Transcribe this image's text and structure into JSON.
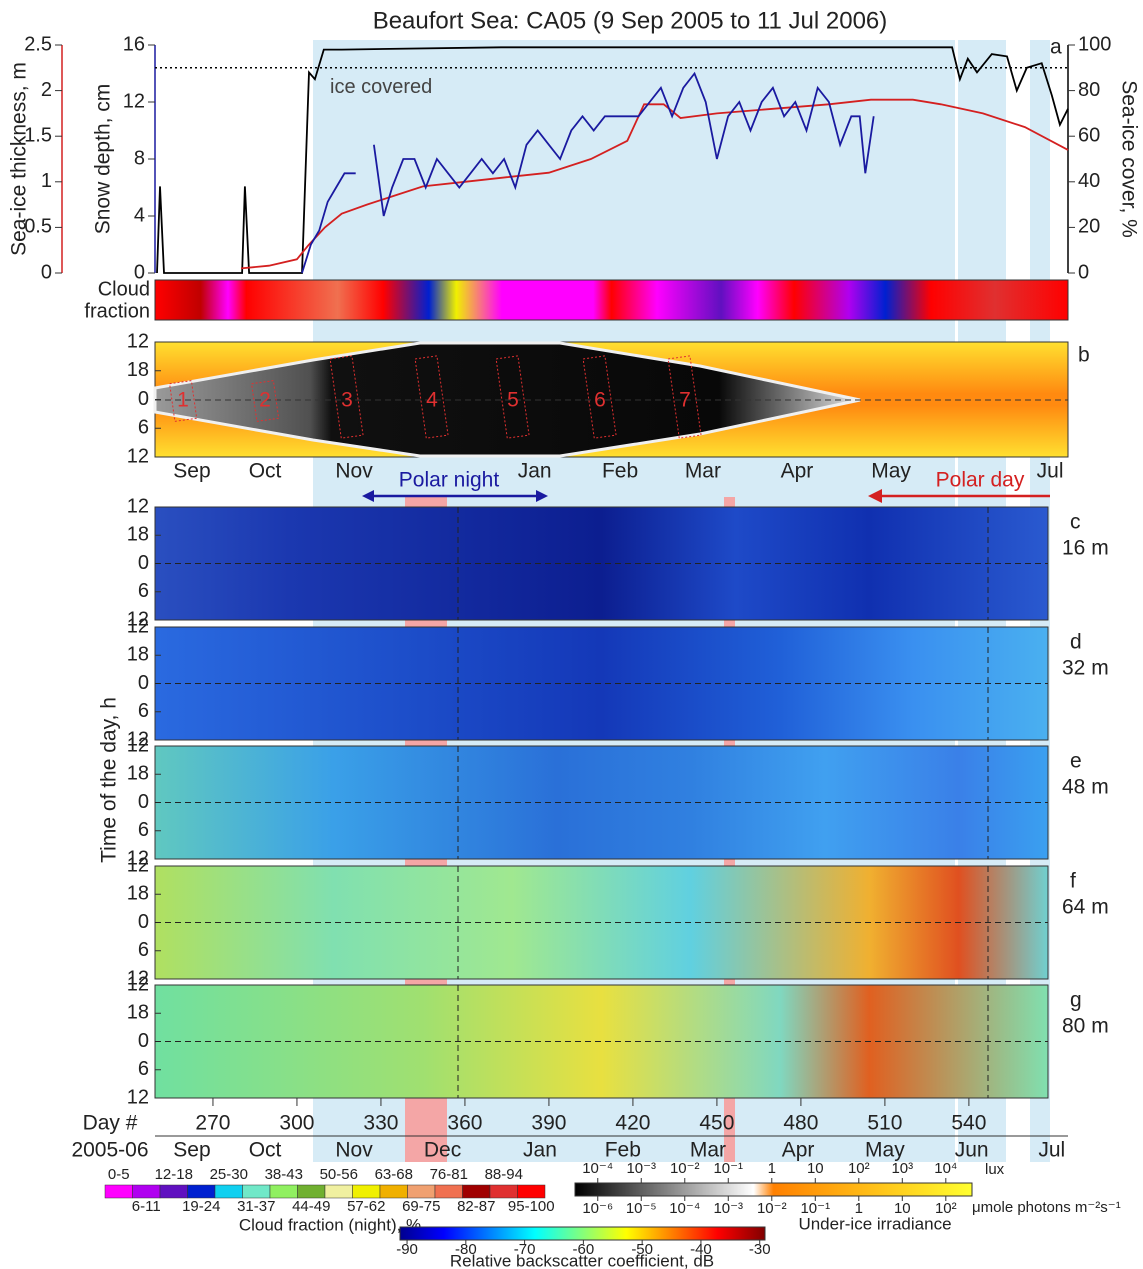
{
  "chart_data": {
    "type": "line",
    "title": "Beaufort Sea: CA05 (9 Sep 2005 to 11 Jul 2006)",
    "panel_letter": "a",
    "xlim": [
      249.3,
      575.4
    ],
    "xticks": [
      270,
      300,
      330,
      360,
      390,
      420,
      450,
      480,
      510,
      540
    ],
    "xlabel": "Day #",
    "months_label": "2005-06",
    "months": [
      {
        "value": 262.5,
        "label": "Sep"
      },
      {
        "value": 288.6,
        "label": "Oct"
      },
      {
        "value": 320.4,
        "label": "Nov"
      },
      {
        "value": 352,
        "label": "Dec"
      },
      {
        "value": 386.8,
        "label": "Jan"
      },
      {
        "value": 416.4,
        "label": "Feb"
      },
      {
        "value": 446.8,
        "label": "Mar"
      },
      {
        "value": 479,
        "label": "Apr"
      },
      {
        "value": 510,
        "label": "May"
      },
      {
        "value": 541,
        "label": "Jun"
      },
      {
        "value": 569.6,
        "label": "Jul"
      }
    ],
    "ylabel": "Snow depth, cm",
    "ylim": [
      0,
      16
    ],
    "yticks": [
      0,
      4,
      8,
      12,
      16
    ],
    "ycolor": "#1a1aa0",
    "y2label": "Sea-ice cover, %",
    "y2lim": [
      0,
      100
    ],
    "y2ticks": [
      0,
      20,
      40,
      60,
      80,
      100
    ],
    "y2color": "#000000",
    "y3label": "Sea-ice thickness, m",
    "y3lim": [
      0,
      2.5
    ],
    "y3ticks": [
      0,
      0.5,
      1,
      1.5,
      2,
      2.5
    ],
    "y3color": "#d42020",
    "threshold": {
      "value": 90,
      "label": "ice covered"
    },
    "series": [
      {
        "color": "#000000",
        "axis": "y2",
        "x": [
          250,
          251.1,
          252.5,
          280.4,
          281.4,
          282.9,
          301.8,
          304.3,
          306.4,
          309.6,
          316,
          373,
          445,
          534,
          536.8,
          539.6,
          542.9,
          548.2,
          553.6,
          557.1,
          560.7,
          566,
          569.6,
          572.5,
          575.4
        ],
        "values": [
          0,
          38,
          0,
          0,
          38,
          0,
          0,
          88,
          85,
          98,
          98,
          99,
          99,
          99,
          85,
          94,
          88,
          96,
          95,
          80,
          90,
          92,
          78,
          65,
          72
        ]
      },
      {
        "color": "#d42020",
        "axis": "y3",
        "x": [
          280,
          290,
          300,
          304,
          310,
          316,
          325,
          335,
          345,
          360,
          375,
          390,
          405,
          418,
          424,
          431,
          437,
          450,
          470,
          490,
          505,
          520,
          530,
          545,
          560,
          575.4
        ],
        "values": [
          0.05,
          0.08,
          0.15,
          0.3,
          0.5,
          0.65,
          0.75,
          0.85,
          0.95,
          1.0,
          1.05,
          1.1,
          1.25,
          1.45,
          1.85,
          1.85,
          1.7,
          1.75,
          1.8,
          1.85,
          1.9,
          1.9,
          1.85,
          1.75,
          1.6,
          1.35
        ]
      },
      {
        "color": "#1a1aa0",
        "axis": "y",
        "x": [
          301.8,
          305,
          308,
          311,
          314,
          317,
          321,
          324,
          327.5,
          331,
          334,
          338,
          342,
          346,
          350,
          354,
          358,
          362,
          366,
          370,
          374,
          378,
          382,
          386,
          390,
          394,
          398,
          402,
          406,
          410,
          414,
          418,
          422,
          426,
          430,
          434,
          438,
          442,
          446,
          450,
          454,
          458,
          462,
          466,
          470,
          474,
          478,
          482,
          486,
          490,
          494,
          498,
          501,
          503,
          506
        ],
        "values": [
          0,
          2,
          3,
          5,
          6,
          7,
          7,
          null,
          9,
          4,
          6,
          8,
          8,
          6,
          8,
          7,
          6,
          7,
          8,
          7,
          8,
          6,
          9,
          10,
          9,
          8,
          10,
          11,
          10,
          11,
          11,
          11,
          11,
          12,
          13,
          11,
          13,
          14,
          12,
          8,
          11,
          12,
          10,
          12,
          13,
          11,
          12,
          10,
          13,
          12,
          9,
          11,
          11,
          7,
          11
        ]
      }
    ]
  },
  "cloud_bar": {
    "label": [
      "Cloud",
      "fraction"
    ]
  },
  "irradiance_panel": {
    "letter": "b",
    "boxes": [
      1,
      2,
      3,
      4,
      5,
      6,
      7
    ],
    "months": [
      {
        "value": 262.5,
        "label": "Sep"
      },
      {
        "value": 288.6,
        "label": "Oct"
      },
      {
        "value": 320.4,
        "label": "Nov"
      },
      {
        "value": 384.9,
        "label": "Jan"
      },
      {
        "value": 415.4,
        "label": "Feb"
      },
      {
        "value": 445,
        "label": "Mar"
      },
      {
        "value": 478.6,
        "label": "Apr"
      },
      {
        "value": 512.2,
        "label": "May"
      },
      {
        "value": 569,
        "label": "Jul"
      }
    ]
  },
  "time_axis": {
    "label": "Time of the day, h",
    "lim": [
      -12,
      12
    ],
    "ticks": [
      {
        "value": -12,
        "label": "12"
      },
      {
        "value": -6,
        "label": "18"
      },
      0,
      6,
      12
    ]
  },
  "annotations": {
    "polar_night": "Polar night",
    "polar_day": "Polar day"
  },
  "backscatter_panels": [
    {
      "letter": "c",
      "depth": "16 m"
    },
    {
      "letter": "d",
      "depth": "32 m"
    },
    {
      "letter": "e",
      "depth": "48 m"
    },
    {
      "letter": "f",
      "depth": "64 m"
    },
    {
      "letter": "g",
      "depth": "80 m"
    }
  ],
  "legends": {
    "cloud": {
      "title": "Cloud fraction (night), %",
      "classes": [
        {
          "label": "0-5",
          "color": "#ff00ff"
        },
        {
          "label": "6-11",
          "color": "#b000f0"
        },
        {
          "label": "12-18",
          "color": "#6010c0"
        },
        {
          "label": "19-24",
          "color": "#0020d0"
        },
        {
          "label": "25-30",
          "color": "#10d0f0"
        },
        {
          "label": "31-37",
          "color": "#70e8c8"
        },
        {
          "label": "38-43",
          "color": "#90f060"
        },
        {
          "label": "44-49",
          "color": "#70b030"
        },
        {
          "label": "50-56",
          "color": "#f0f0a0"
        },
        {
          "label": "57-62",
          "color": "#f0f000"
        },
        {
          "label": "63-68",
          "color": "#f0b000"
        },
        {
          "label": "69-75",
          "color": "#f0a070"
        },
        {
          "label": "76-81",
          "color": "#f07050"
        },
        {
          "label": "82-87",
          "color": "#a00000"
        },
        {
          "label": "88-94",
          "color": "#e03030"
        },
        {
          "label": "95-100",
          "color": "#ff0000"
        }
      ]
    },
    "irradiance": {
      "title": "Under-ice irradiance",
      "lux_unit": "lux",
      "photon_unit": "μmole photons m⁻²s⁻¹",
      "lux_lim": [
        3e-05,
        40000.0
      ],
      "lux_ticks": [
        {
          "value": 0.0001,
          "label": "10⁻⁴"
        },
        {
          "value": 0.001,
          "label": "10⁻³"
        },
        {
          "value": 0.01,
          "label": "10⁻²"
        },
        {
          "value": 0.1,
          "label": "10⁻¹"
        },
        1,
        10,
        {
          "value": 100,
          "label": "10²"
        },
        {
          "value": 1000,
          "label": "10³"
        },
        {
          "value": 10000,
          "label": "10⁴"
        }
      ],
      "photon_lim": [
        3e-07,
        400
      ],
      "photon_ticks": [
        {
          "value": 1e-06,
          "label": "10⁻⁶"
        },
        {
          "value": 1e-05,
          "label": "10⁻⁵"
        },
        {
          "value": 0.0001,
          "label": "10⁻⁴"
        },
        {
          "value": 0.001,
          "label": "10⁻³"
        },
        {
          "value": 0.01,
          "label": "10⁻²"
        },
        {
          "value": 0.1,
          "label": "10⁻¹"
        },
        1,
        10,
        {
          "value": 100,
          "label": "10²"
        }
      ]
    },
    "backscatter": {
      "title": "Relative backscatter coefficient, dB",
      "lim": [
        -91.2,
        -29.1
      ],
      "ticks": [
        -90,
        -80,
        -70,
        -60,
        -50,
        -40,
        -30
      ]
    }
  }
}
